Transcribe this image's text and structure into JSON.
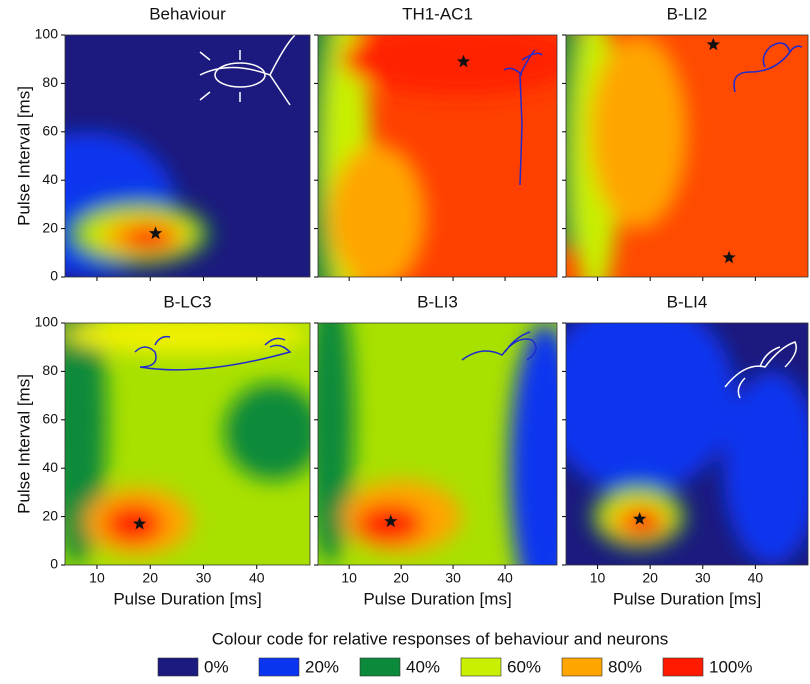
{
  "chart_data": [
    {
      "type": "contour",
      "title": "Behaviour",
      "ylabel": "Pulse Interval [ms]",
      "xlim": [
        4,
        50
      ],
      "ylim": [
        0,
        100
      ],
      "xticks": [
        10,
        20,
        30,
        40
      ],
      "yticks": [
        0,
        20,
        40,
        60,
        80,
        100
      ],
      "xtick_labels": false,
      "ytick_labels": true,
      "markers": {
        "x": [
          21
        ],
        "y": [
          18
        ]
      }
    },
    {
      "type": "contour",
      "title": "TH1-AC1",
      "xlim": [
        4,
        50
      ],
      "ylim": [
        0,
        100
      ],
      "xticks": [
        10,
        20,
        30,
        40
      ],
      "yticks": [
        0,
        20,
        40,
        60,
        80,
        100
      ],
      "xtick_labels": false,
      "ytick_labels": false,
      "markers": {
        "x": [
          32
        ],
        "y": [
          89
        ]
      }
    },
    {
      "type": "contour",
      "title": "B-LI2",
      "xlim": [
        4,
        50
      ],
      "ylim": [
        0,
        100
      ],
      "xticks": [
        10,
        20,
        30,
        40
      ],
      "yticks": [
        0,
        20,
        40,
        60,
        80,
        100
      ],
      "xtick_labels": false,
      "ytick_labels": false,
      "markers": {
        "x": [
          32,
          35
        ],
        "y": [
          96,
          8
        ]
      }
    },
    {
      "type": "contour",
      "title": "B-LC3",
      "ylabel": "Pulse Interval [ms]",
      "xlabel": "Pulse Duration [ms]",
      "xlim": [
        4,
        50
      ],
      "ylim": [
        0,
        100
      ],
      "xticks": [
        10,
        20,
        30,
        40
      ],
      "yticks": [
        0,
        20,
        40,
        60,
        80,
        100
      ],
      "xtick_labels": true,
      "ytick_labels": true,
      "markers": {
        "x": [
          18
        ],
        "y": [
          17
        ]
      }
    },
    {
      "type": "contour",
      "title": "B-LI3",
      "xlabel": "Pulse Duration [ms]",
      "xlim": [
        4,
        50
      ],
      "ylim": [
        0,
        100
      ],
      "xticks": [
        10,
        20,
        30,
        40
      ],
      "yticks": [
        0,
        20,
        40,
        60,
        80,
        100
      ],
      "xtick_labels": true,
      "ytick_labels": false,
      "markers": {
        "x": [
          18
        ],
        "y": [
          18
        ]
      }
    },
    {
      "type": "contour",
      "title": "B-LI4",
      "xlabel": "Pulse Duration [ms]",
      "xlim": [
        4,
        50
      ],
      "ylim": [
        0,
        100
      ],
      "xticks": [
        10,
        20,
        30,
        40
      ],
      "yticks": [
        0,
        20,
        40,
        60,
        80,
        100
      ],
      "xtick_labels": true,
      "ytick_labels": false,
      "markers": {
        "x": [
          18
        ],
        "y": [
          19
        ]
      }
    }
  ],
  "legend": {
    "title": "Colour code for relative responses of behaviour and neurons",
    "items": [
      {
        "label": "0%",
        "color": "#1c1a7e"
      },
      {
        "label": "20%",
        "color": "#0a35f0"
      },
      {
        "label": "40%",
        "color": "#0a8a3a"
      },
      {
        "label": "60%",
        "color": "#c8f000"
      },
      {
        "label": "80%",
        "color": "#ffa500"
      },
      {
        "label": "100%",
        "color": "#ff1a00"
      }
    ]
  }
}
